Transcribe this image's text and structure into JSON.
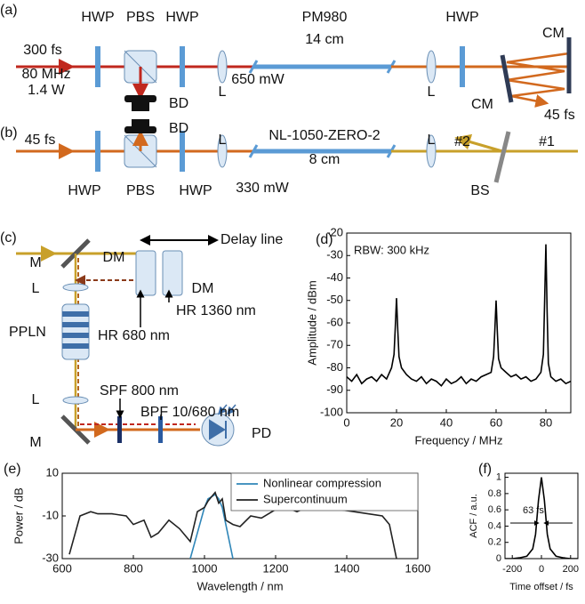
{
  "panel_a": {
    "label": "(a)",
    "hwp": "HWP",
    "pbs": "PBS",
    "fiber": "PM980",
    "fiber_length": "14 cm",
    "pulse_in": "300 fs",
    "rep_rate": "80 MHz",
    "power_in": "1.4 W",
    "power_out": "650 mW",
    "lens": "L",
    "dump": "BD",
    "mirror": "CM",
    "pulse_out": "45 fs"
  },
  "panel_b": {
    "label": "(b)",
    "pulse_in": "45 fs",
    "hwp": "HWP",
    "pbs": "PBS",
    "dump": "BD",
    "lens": "L",
    "fiber": "NL-1050-ZERO-2",
    "fiber_length": "8 cm",
    "power_out": "330 mW",
    "port_2": "#2",
    "port_1": "#1",
    "splitter": "BS"
  },
  "panel_c": {
    "label": "(c)",
    "mirror": "M",
    "dichroic": "DM",
    "delay": "Delay line",
    "lens": "L",
    "hr_1360": "HR 1360 nm",
    "hr_680": "HR 680 nm",
    "crystal": "PPLN",
    "spf": "SPF 800 nm",
    "bpf": "BPF 10/680 nm",
    "detector": "PD"
  },
  "chart_data": [
    {
      "type": "line",
      "label": "(d)",
      "annotation": "RBW: 300 kHz",
      "x_label": "Frequency / MHz",
      "y_label": "Amplitude / dBm",
      "color": "#000000",
      "x": [
        0,
        2,
        4,
        6,
        8,
        10,
        12,
        14,
        16,
        18,
        19,
        19.5,
        20,
        20.5,
        21,
        22,
        24,
        26,
        28,
        30,
        32,
        34,
        36,
        38,
        40,
        42,
        44,
        46,
        48,
        50,
        52,
        54,
        56,
        58,
        59,
        59.5,
        60,
        60.5,
        61,
        62,
        64,
        66,
        68,
        70,
        72,
        74,
        76,
        78,
        79,
        79.5,
        80,
        80.5,
        81,
        82,
        84,
        86,
        88,
        90
      ],
      "values": [
        -84,
        -86,
        -83,
        -87,
        -85,
        -84,
        -86,
        -83,
        -85,
        -80,
        -74,
        -62,
        -49,
        -63,
        -75,
        -80,
        -83,
        -85,
        -86,
        -84,
        -87,
        -85,
        -86,
        -88,
        -85,
        -87,
        -86,
        -84,
        -87,
        -85,
        -86,
        -84,
        -83,
        -82,
        -75,
        -63,
        -50,
        -64,
        -76,
        -80,
        -82,
        -84,
        -83,
        -85,
        -84,
        -86,
        -85,
        -82,
        -74,
        -50,
        -25,
        -55,
        -78,
        -84,
        -86,
        -85,
        -87,
        -86
      ],
      "xlim": [
        0,
        90
      ],
      "xticks": [
        0,
        20,
        40,
        60,
        80
      ],
      "ylim": [
        -100,
        -20
      ],
      "yticks": [
        -100,
        -90,
        -80,
        -70,
        -60,
        -50,
        -40,
        -30,
        -20
      ]
    },
    {
      "type": "line",
      "label": "(e)",
      "x_label": "Wavelength / nm",
      "y_label": "Power / dB",
      "legend": "upper right",
      "x": [
        600,
        620,
        650,
        680,
        700,
        740,
        780,
        800,
        830,
        850,
        870,
        900,
        930,
        960,
        980,
        1000,
        1010,
        1020,
        1030,
        1040,
        1050,
        1060,
        1080,
        1100,
        1130,
        1160,
        1200,
        1230,
        1260,
        1300,
        1340,
        1380,
        1420,
        1460,
        1500,
        1520,
        1530,
        1540
      ],
      "series": [
        {
          "name": "Nonlinear compression",
          "color": "#2f86b8",
          "values": [
            null,
            null,
            null,
            null,
            null,
            null,
            null,
            null,
            null,
            null,
            null,
            null,
            null,
            -30,
            -18,
            -6,
            -2,
            -1,
            0,
            -2,
            -6,
            -14,
            -30,
            null,
            null,
            null,
            null,
            null,
            null,
            null,
            null,
            null,
            null,
            null,
            null,
            null,
            null,
            null
          ]
        },
        {
          "name": "Supercontinuum",
          "color": "#222222",
          "values": [
            null,
            -28,
            -10,
            -8,
            -9,
            -9,
            -10,
            -14,
            -12,
            -20,
            -18,
            -12,
            -16,
            -22,
            -8,
            -6,
            -3,
            -1,
            1,
            -4,
            -2,
            -12,
            -14,
            -15,
            -10,
            -11,
            -7,
            -6,
            -8,
            -5,
            -6,
            -7,
            -8,
            -9,
            -10,
            -14,
            -22,
            -30
          ]
        }
      ],
      "xlim": [
        600,
        1600
      ],
      "xticks": [
        600,
        800,
        1000,
        1200,
        1400,
        1600
      ],
      "ylim": [
        -30,
        10
      ],
      "yticks": [
        -30,
        -10,
        10
      ]
    },
    {
      "type": "line",
      "label": "(f)",
      "annotation": "63 fs",
      "x_label": "Time offset / fs",
      "y_label": "ACF / a.u.",
      "color": "#000000",
      "x": [
        -250,
        -200,
        -150,
        -100,
        -60,
        -40,
        -20,
        0,
        20,
        40,
        60,
        100,
        150,
        200,
        250
      ],
      "values": [
        0,
        0,
        0.01,
        0.03,
        0.12,
        0.3,
        0.72,
        1,
        0.72,
        0.3,
        0.12,
        0.03,
        0.01,
        0,
        0
      ],
      "xlim": [
        -250,
        250
      ],
      "xticks": [
        -200,
        0,
        200
      ],
      "ylim": [
        0,
        1.05
      ],
      "yticks": [
        0,
        0.2,
        0.4,
        0.6,
        0.8,
        1
      ]
    }
  ]
}
